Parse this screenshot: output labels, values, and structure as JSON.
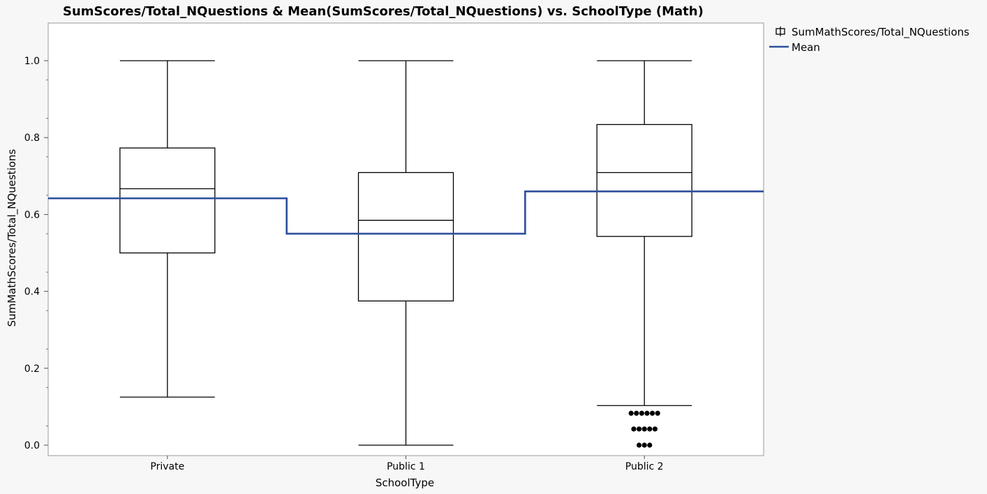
{
  "chart_data": {
    "type": "box",
    "title": "SumScores/Total_NQuestions & Mean(SumScores/Total_NQuestions) vs. SchoolType (Math)",
    "xlabel": "SchoolType",
    "ylabel": "SumMathScores/Total_NQuestions",
    "ylim": [
      -0.03,
      1.1
    ],
    "yticks": [
      "0.0",
      "0.2",
      "0.4",
      "0.6",
      "0.8",
      "1.0"
    ],
    "grid": false,
    "legend_position": "top-right",
    "categories": [
      "Private",
      "Public 1",
      "Public 2"
    ],
    "boxes": [
      {
        "category": "Private",
        "min": 0.125,
        "q1": 0.5,
        "median": 0.667,
        "q3": 0.773,
        "max": 1.0,
        "mean": 0.642,
        "outliers": []
      },
      {
        "category": "Public 1",
        "min": 0.0,
        "q1": 0.375,
        "median": 0.585,
        "q3": 0.709,
        "max": 1.0,
        "mean": 0.55,
        "outliers": []
      },
      {
        "category": "Public 2",
        "min": 0.103,
        "q1": 0.543,
        "median": 0.709,
        "q3": 0.834,
        "max": 1.0,
        "mean": 0.66,
        "outliers": [
          {
            "y": 0.083,
            "count": 6
          },
          {
            "y": 0.042,
            "count": 5
          },
          {
            "y": 0.0,
            "count": 3
          }
        ]
      }
    ],
    "legend": [
      {
        "label": "SumMathScores/Total_NQuestions",
        "symbol": "box"
      },
      {
        "label": "Mean",
        "symbol": "line"
      }
    ],
    "colors": {
      "box": "#000000",
      "mean": "#2e4f9c",
      "outlier": "#000000",
      "frame": "#9a9a9a"
    }
  }
}
